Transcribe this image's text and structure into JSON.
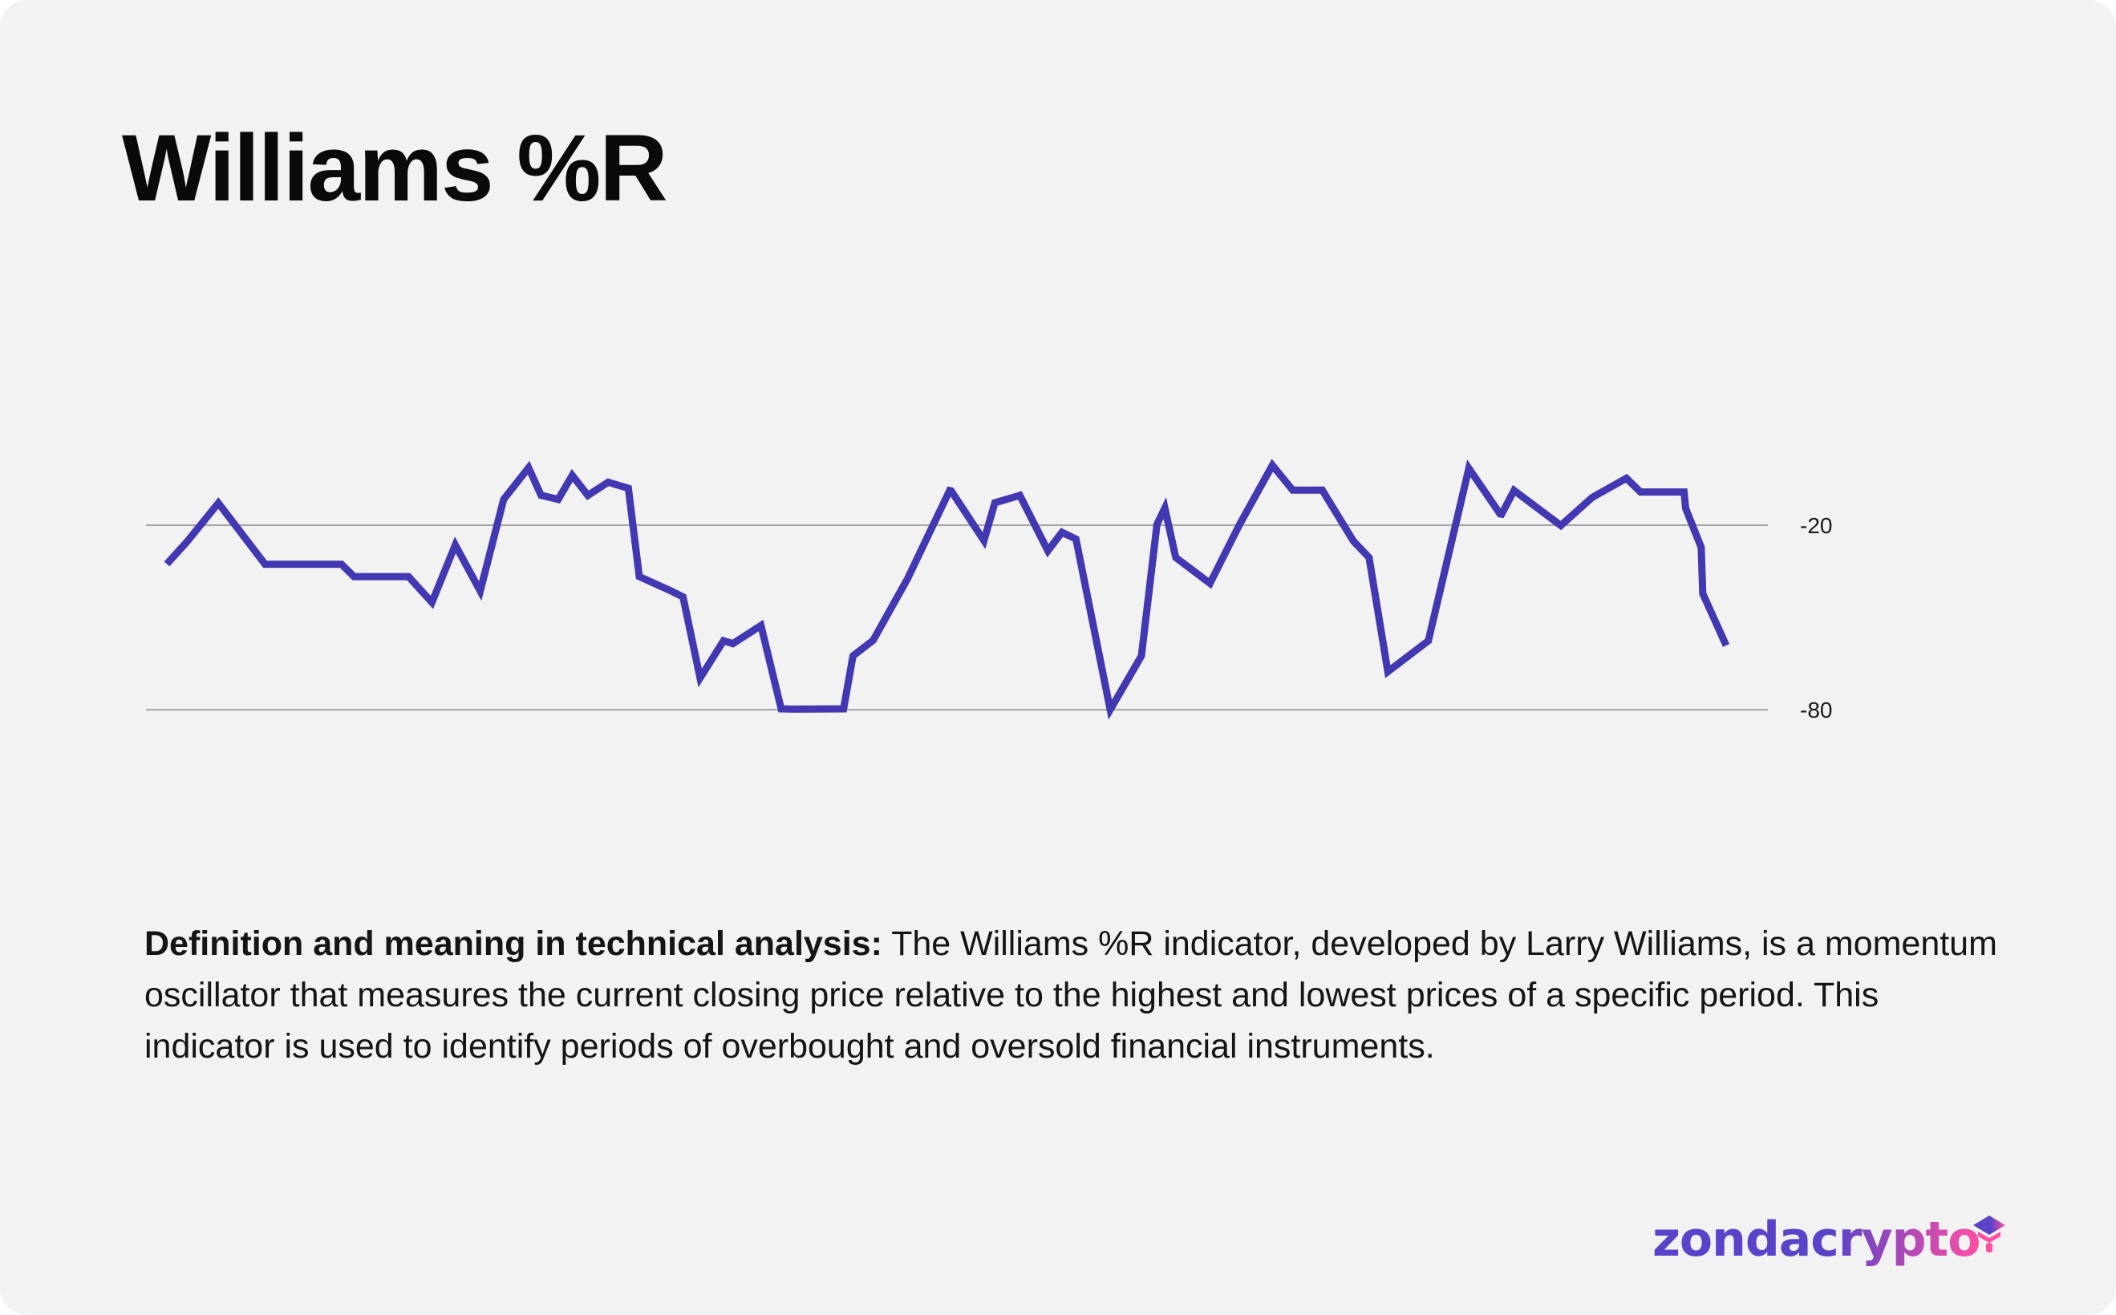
{
  "title": "Williams %R",
  "chart_data": {
    "type": "line",
    "title": "Williams %R",
    "xlabel": "",
    "ylabel": "",
    "ylim": [
      -105,
      10
    ],
    "reference_lines": [
      -20,
      -80
    ],
    "tick_labels": [
      "-20",
      "-80"
    ],
    "series": [
      {
        "name": "Williams %R",
        "color": "#4239b2",
        "x": [
          0,
          1.3,
          3.3,
          6.3,
          9.1,
          11.2,
          12,
          15.5,
          17,
          18.5,
          20.1,
          21.6,
          23.2,
          24,
          25.1,
          26,
          27,
          28.3,
          29.6,
          30.3,
          32.3,
          33.1,
          34.2,
          35.7,
          36.3,
          38.1,
          39.4,
          40.1,
          43.4,
          44,
          45.3,
          47.5,
          50.2,
          50.3,
          52.4,
          53.1,
          54.7,
          56.5,
          57.4,
          58.3,
          60.5,
          62.5,
          63.5,
          64,
          64.7,
          66.9,
          68.8,
          70.9,
          72.2,
          74.1,
          76.1,
          77.1,
          78.3,
          80.9,
          83.5,
          85.5,
          85.6,
          86.4,
          89.4,
          91.4,
          93.6,
          94.5,
          97.3,
          97.4,
          98.4,
          98.5,
          100
        ],
        "values": [
          -32.6,
          -25.3,
          -12.8,
          -32.7,
          -32.7,
          -32.7,
          -36.7,
          -36.7,
          -45.1,
          -26.4,
          -41.4,
          -11.6,
          -1.3,
          -10.3,
          -11.6,
          -3.8,
          -10.3,
          -6,
          -8,
          -36.7,
          -41.3,
          -43.3,
          -69.7,
          -57.6,
          -58.5,
          -52.6,
          -79.7,
          -79.8,
          -79.7,
          -62.5,
          -57.4,
          -37.4,
          -8.7,
          -8.8,
          -25,
          -12.7,
          -10.3,
          -28.3,
          -22.3,
          -24.5,
          -80,
          -62.5,
          -19.7,
          -14.4,
          -30.5,
          -38.9,
          -19.7,
          -0.5,
          -8.6,
          -8.6,
          -25.2,
          -30.5,
          -67.6,
          -57.6,
          -1.5,
          -16.3,
          -16.4,
          -8.7,
          -20.1,
          -11,
          -4.7,
          -9.2,
          -9.2,
          -14.5,
          -27.2,
          -42.2,
          -59.1
        ]
      }
    ]
  },
  "description": {
    "lead": "Definition and meaning in technical analysis:",
    "body": " The Williams %R indicator, developed by Larry Williams, is a momentum oscillator that measures the current closing price relative to the highest and lowest prices of a specific period. This indicator is used to identify periods of overbought and oversold financial instruments."
  },
  "brand": {
    "name": "zondacrypto",
    "gradient_start": "#5b43c9",
    "gradient_end": "#ff4fa3"
  }
}
